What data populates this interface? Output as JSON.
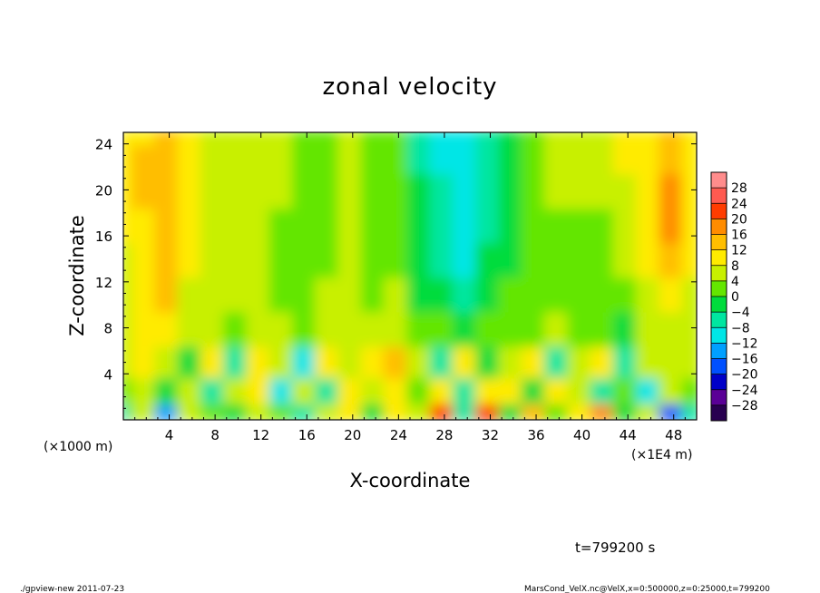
{
  "chart_data": {
    "type": "heatmap",
    "title": "zonal velocity",
    "xlabel": "X-coordinate",
    "ylabel": "Z-coordinate",
    "x_unit_note": "(×1E4 m)",
    "y_unit_note": "(×1000 m)",
    "xlim": [
      0,
      50
    ],
    "ylim": [
      0,
      25
    ],
    "x_ticks": [
      4,
      8,
      12,
      16,
      20,
      24,
      28,
      32,
      36,
      40,
      44,
      48
    ],
    "x_tick_labels": [
      "4",
      "8",
      "12",
      "16",
      "20",
      "24",
      "28",
      "32",
      "36",
      "40",
      "44",
      "48"
    ],
    "y_ticks": [
      4,
      8,
      12,
      16,
      20,
      24
    ],
    "y_tick_labels": [
      "4",
      "8",
      "12",
      "16",
      "20",
      "24"
    ],
    "colorbar": {
      "levels": [
        28,
        24,
        20,
        16,
        12,
        8,
        4,
        0,
        -4,
        -8,
        -12,
        -16,
        -20,
        -24,
        -28
      ],
      "labels": [
        "28",
        "24",
        "20",
        "16",
        "12",
        "8",
        "4",
        "0",
        "−4",
        "−8",
        "−12",
        "−16",
        "−20",
        "−24",
        "−28"
      ],
      "colors": [
        "#ff8c8c",
        "#ff5a50",
        "#ff3c00",
        "#ff8c00",
        "#ffbe00",
        "#ffeb00",
        "#c8f000",
        "#64e600",
        "#00dc3c",
        "#00e6a0",
        "#00e6e6",
        "#00a0ff",
        "#0050ff",
        "#0000c8",
        "#5a0096",
        "#280050"
      ]
    },
    "grid": false,
    "legend": "colorbar-right",
    "columns_x": [
      0,
      2,
      4,
      6,
      8,
      10,
      12,
      14,
      16,
      18,
      20,
      22,
      24,
      26,
      28,
      30,
      32,
      34,
      36,
      38,
      40,
      42,
      44,
      46,
      48,
      50
    ],
    "rows_z": [
      0.5,
      2.5,
      5,
      8,
      11,
      14,
      17,
      20,
      23,
      25
    ],
    "values": [
      [
        -6,
        6,
        -16,
        4,
        2,
        -2,
        4,
        0,
        -6,
        6,
        10,
        -4,
        8,
        4,
        20,
        -6,
        22,
        -2,
        14,
        2,
        10,
        18,
        -4,
        4,
        -18,
        -6
      ],
      [
        2,
        4,
        -4,
        6,
        -8,
        6,
        8,
        -10,
        6,
        -6,
        8,
        6,
        10,
        0,
        8,
        -8,
        8,
        10,
        -2,
        8,
        6,
        -6,
        2,
        -10,
        4,
        2
      ],
      [
        4,
        8,
        6,
        -4,
        8,
        -6,
        10,
        4,
        -10,
        8,
        6,
        8,
        14,
        4,
        -6,
        10,
        -4,
        4,
        8,
        -6,
        4,
        8,
        -8,
        6,
        4,
        6
      ],
      [
        6,
        8,
        8,
        4,
        6,
        2,
        6,
        4,
        0,
        4,
        6,
        4,
        6,
        2,
        0,
        -2,
        2,
        0,
        2,
        4,
        2,
        0,
        -4,
        4,
        6,
        6
      ],
      [
        6,
        8,
        12,
        6,
        4,
        4,
        6,
        2,
        2,
        4,
        6,
        2,
        4,
        -2,
        -4,
        -8,
        -4,
        0,
        0,
        2,
        2,
        0,
        2,
        6,
        10,
        6
      ],
      [
        6,
        8,
        14,
        8,
        4,
        4,
        6,
        2,
        0,
        2,
        4,
        2,
        2,
        -4,
        -6,
        -10,
        -4,
        -2,
        0,
        2,
        2,
        2,
        4,
        8,
        14,
        8
      ],
      [
        8,
        10,
        14,
        8,
        4,
        4,
        6,
        2,
        0,
        2,
        4,
        2,
        2,
        -4,
        -8,
        -12,
        -6,
        -2,
        0,
        2,
        2,
        2,
        6,
        8,
        16,
        8
      ],
      [
        8,
        12,
        14,
        8,
        6,
        4,
        6,
        4,
        0,
        2,
        4,
        2,
        0,
        -4,
        -8,
        -12,
        -6,
        -2,
        0,
        4,
        4,
        4,
        6,
        10,
        16,
        8
      ],
      [
        8,
        12,
        14,
        10,
        6,
        6,
        6,
        4,
        2,
        2,
        4,
        2,
        0,
        -6,
        -10,
        -12,
        -6,
        -2,
        2,
        4,
        4,
        4,
        8,
        10,
        14,
        8
      ],
      [
        8,
        10,
        12,
        10,
        6,
        6,
        6,
        4,
        2,
        2,
        4,
        2,
        0,
        -6,
        -10,
        -10,
        -6,
        -2,
        2,
        4,
        4,
        4,
        8,
        10,
        12,
        8
      ]
    ]
  },
  "footer": {
    "time_label": "t=799200 s",
    "program_label": "./gpview-new  2011-07-23",
    "source_label": "MarsCond_VelX.nc@VelX,x=0:500000,z=0:25000,t=799200"
  }
}
